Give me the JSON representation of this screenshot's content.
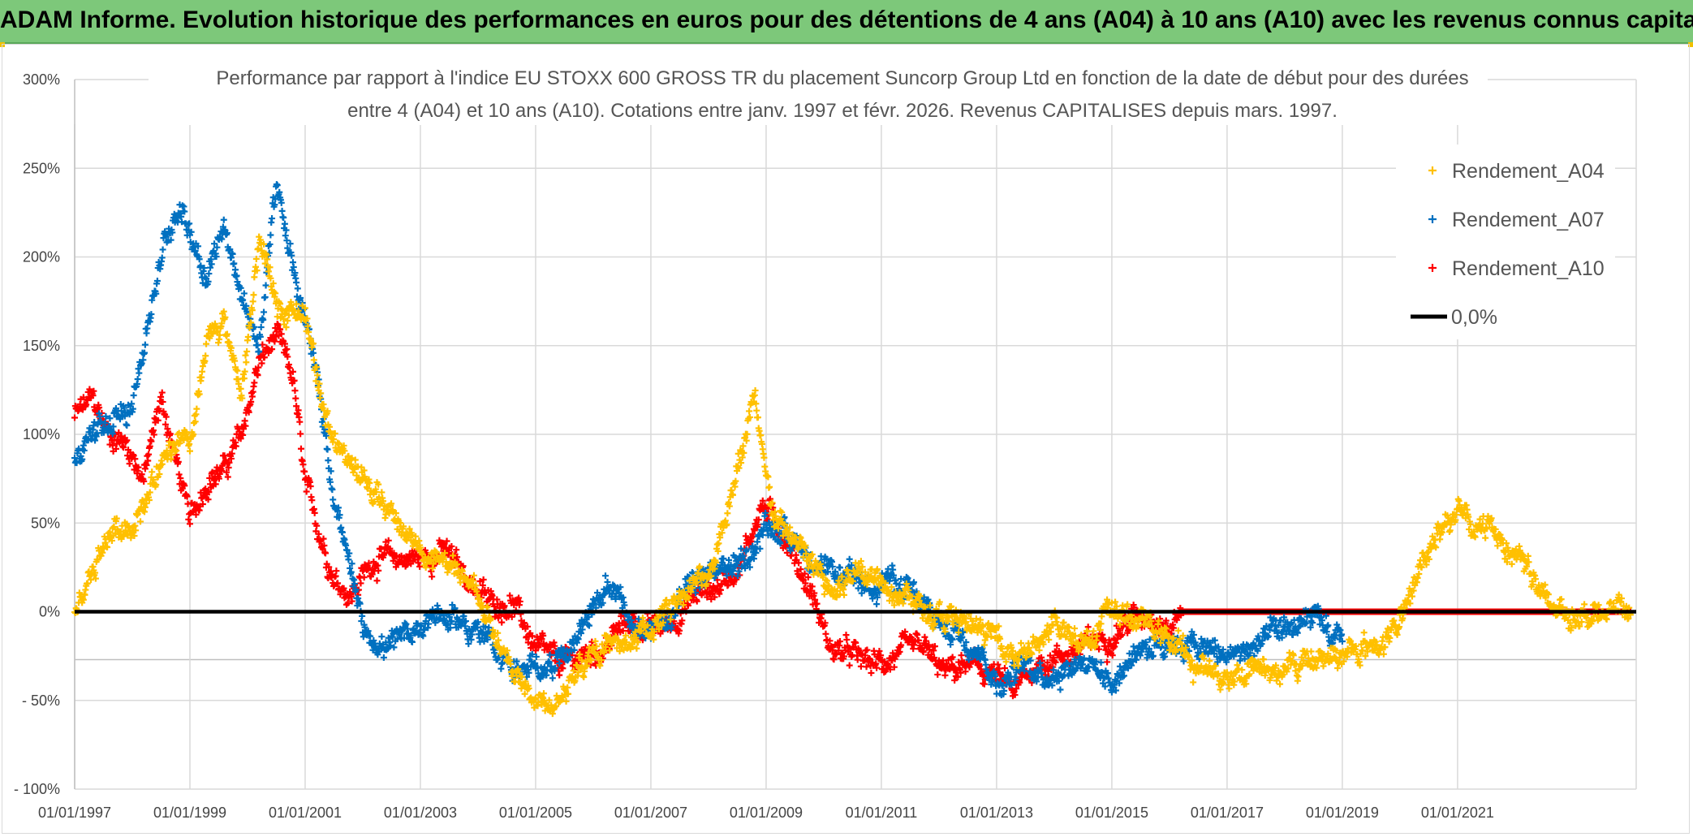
{
  "banner": {
    "title": "ADAM Informe. Evolution historique des performances en euros pour des détentions de 4 ans (A04) à 10 ans (A10) avec les revenus connus capitalisés"
  },
  "chart_data": {
    "type": "scatter",
    "title_line1": "Performance par rapport à l'indice EU STOXX 600 GROSS TR  du placement Suncorp Group Ltd  en fonction de la date de début pour des durées",
    "title_line2": "entre 4 (A04) et 10 ans (A10). Cotations entre janv. 1997 et févr. 2026. Revenus CAPITALISES depuis mars. 1997.",
    "xlim": [
      1997.0,
      2024.1
    ],
    "ylim": [
      -100,
      300
    ],
    "y_ticks": [
      300,
      250,
      200,
      150,
      100,
      50,
      0,
      -50,
      -100
    ],
    "y_tick_labels": [
      "300%",
      "250%",
      "200%",
      "150%",
      "100%",
      "50%",
      "0%",
      "- 50%",
      "- 100%"
    ],
    "x_ticks": [
      1997,
      1999,
      2001,
      2003,
      2005,
      2007,
      2009,
      2011,
      2013,
      2015,
      2017,
      2019,
      2021
    ],
    "x_tick_labels": [
      "01/01/1997",
      "01/01/1999",
      "01/01/2001",
      "01/01/2003",
      "01/01/2005",
      "01/01/2007",
      "01/01/2009",
      "01/01/2011",
      "01/01/2013",
      "01/01/2015",
      "01/01/2017",
      "01/01/2019",
      "01/01/2021"
    ],
    "series": [
      {
        "name": "Rendement_A04",
        "color": "#ffc000",
        "x": [
          1997.0,
          1997.3,
          1997.6,
          1998.0,
          1998.4,
          1998.8,
          1999.0,
          1999.3,
          1999.6,
          1999.9,
          2000.2,
          2000.5,
          2000.8,
          2001.0,
          2001.3,
          2001.6,
          2002.0,
          2002.5,
          2003.0,
          2003.5,
          2004.0,
          2004.5,
          2005.0,
          2005.3,
          2005.7,
          2006.0,
          2006.5,
          2007.0,
          2007.5,
          2008.0,
          2008.5,
          2008.8,
          2009.0,
          2009.2,
          2009.5,
          2009.8,
          2010.2,
          2010.6,
          2011.0,
          2011.4,
          2011.8,
          2012.2,
          2012.6,
          2013.0,
          2013.5,
          2014.0,
          2014.5,
          2015.0,
          2015.5,
          2016.0,
          2016.4,
          2016.8,
          2017.2,
          2017.6,
          2018.0,
          2018.5,
          2019.0,
          2019.4,
          2019.8,
          2020.1,
          2020.4,
          2020.7,
          2021.0,
          2021.3,
          2021.6,
          2021.9,
          2022.2,
          2022.5,
          2022.8,
          2023.2,
          2023.6,
          2024.0
        ],
        "y": [
          0,
          20,
          45,
          50,
          75,
          95,
          90,
          150,
          165,
          120,
          210,
          170,
          175,
          165,
          120,
          90,
          75,
          55,
          35,
          25,
          10,
          -30,
          -50,
          -55,
          -35,
          -20,
          -20,
          -10,
          10,
          20,
          80,
          120,
          70,
          50,
          40,
          25,
          10,
          25,
          20,
          10,
          0,
          -5,
          -10,
          -15,
          -25,
          -10,
          -15,
          0,
          -5,
          -15,
          -30,
          -35,
          -35,
          -30,
          -35,
          -25,
          -25,
          -20,
          -15,
          0,
          30,
          50,
          55,
          45,
          50,
          35,
          30,
          5,
          0,
          0,
          0,
          0
        ]
      },
      {
        "name": "Rendement_A07",
        "color": "#0070c0",
        "x": [
          1997.0,
          1997.3,
          1997.6,
          1997.9,
          1998.2,
          1998.5,
          1998.8,
          1999.0,
          1999.3,
          1999.6,
          1999.9,
          2000.2,
          2000.5,
          2000.8,
          2001.0,
          2001.2,
          2001.5,
          2001.8,
          2002.0,
          2002.4,
          2002.8,
          2003.2,
          2003.6,
          2004.0,
          2004.4,
          2004.8,
          2005.2,
          2005.6,
          2006.0,
          2006.4,
          2006.8,
          2007.2,
          2007.6,
          2008.0,
          2008.4,
          2008.8,
          2009.0,
          2009.3,
          2009.6,
          2009.9,
          2010.3,
          2010.7,
          2011.1,
          2011.5,
          2011.9,
          2012.3,
          2012.7,
          2013.0,
          2013.5,
          2014.0,
          2014.5,
          2015.0,
          2015.5,
          2016.0,
          2016.5,
          2017.0,
          2017.5,
          2018.0,
          2018.5,
          2019.0
        ],
        "y": [
          85,
          100,
          105,
          110,
          150,
          200,
          230,
          215,
          190,
          220,
          175,
          150,
          240,
          190,
          165,
          140,
          60,
          20,
          -10,
          -20,
          -15,
          0,
          -5,
          -10,
          -25,
          -35,
          -30,
          -20,
          5,
          15,
          -15,
          -5,
          10,
          20,
          25,
          35,
          50,
          45,
          40,
          20,
          20,
          15,
          20,
          10,
          -5,
          -10,
          -20,
          -40,
          -30,
          -35,
          -25,
          -40,
          -20,
          -15,
          -20,
          -25,
          -20,
          -10,
          -5,
          -20
        ]
      },
      {
        "name": "Rendement_A10",
        "color": "#ff0000",
        "x": [
          1997.0,
          1997.3,
          1997.6,
          1997.9,
          1998.2,
          1998.5,
          1998.8,
          1999.0,
          1999.3,
          1999.6,
          1999.9,
          2000.2,
          2000.5,
          2000.8,
          2001.0,
          2001.2,
          2001.5,
          2001.8,
          2002.2,
          2002.6,
          2003.0,
          2003.4,
          2003.8,
          2004.2,
          2004.6,
          2005.0,
          2005.4,
          2005.8,
          2006.2,
          2006.6,
          2007.0,
          2007.4,
          2007.8,
          2008.2,
          2008.6,
          2008.9,
          2009.2,
          2009.5,
          2009.8,
          2010.1,
          2010.5,
          2010.9,
          2011.3,
          2011.7,
          2012.1,
          2012.5,
          2012.9,
          2013.3,
          2013.7,
          2014.1,
          2014.5,
          2014.9,
          2015.3,
          2015.7,
          2016.0,
          2016.2,
          2017.0,
          2018.0,
          2019.0,
          2020.0,
          2021.0,
          2022.0,
          2023.0,
          2024.0
        ],
        "y": [
          110,
          120,
          100,
          95,
          75,
          120,
          80,
          50,
          75,
          80,
          100,
          140,
          155,
          130,
          70,
          50,
          20,
          10,
          30,
          30,
          30,
          35,
          20,
          5,
          5,
          -20,
          -30,
          -25,
          -20,
          -5,
          -10,
          -5,
          10,
          15,
          30,
          60,
          50,
          30,
          10,
          -20,
          -25,
          -30,
          -25,
          -20,
          -35,
          -30,
          -35,
          -45,
          -30,
          -25,
          -20,
          -15,
          -5,
          0,
          -10,
          0,
          0,
          0,
          0,
          0,
          0,
          0,
          0,
          0
        ]
      },
      {
        "name": "0,0%",
        "color": "#000000",
        "x": [
          1997.0,
          2024.1
        ],
        "y": [
          0,
          0
        ]
      }
    ]
  }
}
